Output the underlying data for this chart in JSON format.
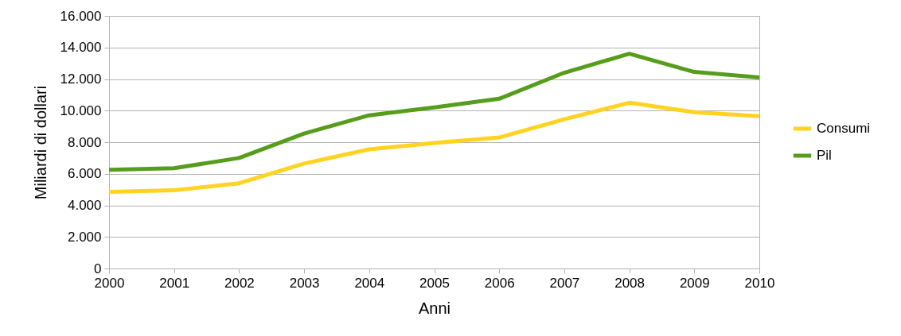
{
  "chart_data": {
    "type": "line",
    "xlabel": "Anni",
    "ylabel": "Miliardi di dollari",
    "x": [
      2000,
      2001,
      2002,
      2003,
      2004,
      2005,
      2006,
      2007,
      2008,
      2009,
      2010
    ],
    "series": [
      {
        "name": "Consumi",
        "color": "#ffd320",
        "values": [
          4850,
          4950,
          5400,
          6650,
          7550,
          7950,
          8300,
          9450,
          10500,
          9900,
          9650
        ]
      },
      {
        "name": "Pil",
        "color": "#579d1c",
        "values": [
          6250,
          6350,
          7000,
          8550,
          9700,
          10200,
          10750,
          12400,
          13600,
          12450,
          12100
        ]
      }
    ],
    "xlim": [
      2000,
      2010
    ],
    "xticks": [
      2000,
      2001,
      2002,
      2003,
      2004,
      2005,
      2006,
      2007,
      2008,
      2009,
      2010
    ],
    "ylim": [
      0,
      16000
    ],
    "yticks": [
      {
        "value": 0,
        "label": "0"
      },
      {
        "value": 2000,
        "label": "2.000"
      },
      {
        "value": 4000,
        "label": "4.000"
      },
      {
        "value": 6000,
        "label": "6.000"
      },
      {
        "value": 8000,
        "label": "8.000"
      },
      {
        "value": 10000,
        "label": "10.000"
      },
      {
        "value": 12000,
        "label": "12.000"
      },
      {
        "value": 14000,
        "label": "14.000"
      },
      {
        "value": 16000,
        "label": "16.000"
      }
    ],
    "grid": "y",
    "legend": "right",
    "marker": "none",
    "line_style": "solid"
  }
}
